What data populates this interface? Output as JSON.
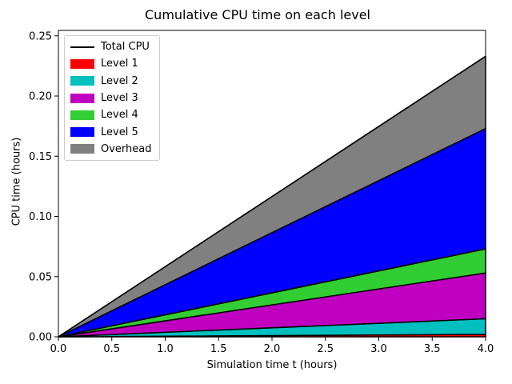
{
  "chart_data": {
    "type": "area",
    "stacked": true,
    "title": "Cumulative CPU time on each level",
    "xlabel": "Simulation time t (hours)",
    "ylabel": "CPU time (hours)",
    "xlim": [
      0.0,
      4.0
    ],
    "ylim": [
      0.0,
      0.2545
    ],
    "grid": false,
    "xticks": [
      0.0,
      0.5,
      1.0,
      1.5,
      2.0,
      2.5,
      3.0,
      3.5,
      4.0
    ],
    "xtick_labels": [
      "0.0",
      "0.5",
      "1.0",
      "1.5",
      "2.0",
      "2.5",
      "3.0",
      "3.5",
      "4.0"
    ],
    "yticks": [
      0.0,
      0.05,
      0.1,
      0.15,
      0.2,
      0.25
    ],
    "ytick_labels": [
      "0.00",
      "0.05",
      "0.10",
      "0.15",
      "0.20",
      "0.25"
    ],
    "x": [
      0.0,
      4.0
    ],
    "series": [
      {
        "name": "Level 1",
        "color": "#ff0000",
        "values": [
          0.0,
          0.002
        ]
      },
      {
        "name": "Level 2",
        "color": "#00bfbf",
        "values": [
          0.0,
          0.013
        ]
      },
      {
        "name": "Level 3",
        "color": "#bf00bf",
        "values": [
          0.0,
          0.038
        ]
      },
      {
        "name": "Level 4",
        "color": "#32cd32",
        "values": [
          0.0,
          0.02
        ]
      },
      {
        "name": "Level 5",
        "color": "#0000ff",
        "values": [
          0.0,
          0.1
        ]
      },
      {
        "name": "Overhead",
        "color": "#808080",
        "values": [
          0.0,
          0.06
        ]
      }
    ],
    "cumulative_tops_at_xmax": [
      0.002,
      0.015,
      0.053,
      0.073,
      0.173,
      0.233
    ],
    "total_line": {
      "name": "Total CPU",
      "color": "#000000",
      "values": [
        0.0,
        0.233
      ]
    },
    "edge_color": "#000000",
    "legend": {
      "position": "upper left",
      "entries": [
        {
          "label": "Total CPU",
          "swatch": "line",
          "color": "#000000"
        },
        {
          "label": "Level 1",
          "swatch": "patch",
          "color": "#ff0000"
        },
        {
          "label": "Level 2",
          "swatch": "patch",
          "color": "#00bfbf"
        },
        {
          "label": "Level 3",
          "swatch": "patch",
          "color": "#bf00bf"
        },
        {
          "label": "Level 4",
          "swatch": "patch",
          "color": "#32cd32"
        },
        {
          "label": "Level 5",
          "swatch": "patch",
          "color": "#0000ff"
        },
        {
          "label": "Overhead",
          "swatch": "patch",
          "color": "#808080"
        }
      ]
    }
  }
}
